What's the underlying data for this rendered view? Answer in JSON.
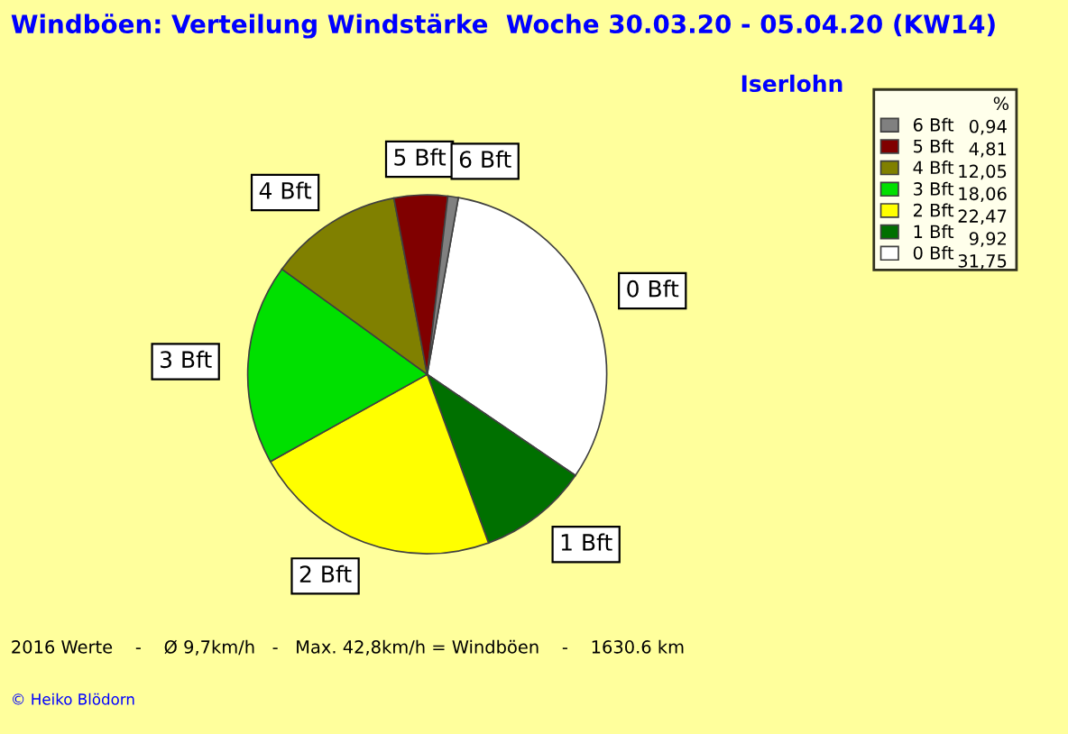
{
  "chart_data": {
    "type": "pie",
    "title": "Windböen: Verteilung Windstärke  Woche 30.03.20 - 05.04.20 (KW14)",
    "subtitle": "Iserlohn",
    "categories": [
      "0 Bft",
      "1 Bft",
      "2 Bft",
      "3 Bft",
      "4 Bft",
      "5 Bft",
      "6 Bft"
    ],
    "values": [
      31.75,
      9.92,
      22.47,
      18.06,
      12.05,
      4.81,
      0.94
    ],
    "value_labels": [
      "31,75",
      "9,92",
      "22,47",
      "18,06",
      "12,05",
      "4,81",
      "0,94"
    ],
    "colors": [
      "#ffffff",
      "#007000",
      "#ffff00",
      "#00e000",
      "#808000",
      "#800000",
      "#808080"
    ],
    "legend": "right",
    "legend_title": "%",
    "annotations": [
      "2016 Werte    -    Ø 9,7km/h   -   Max. 42,8km/h = Windböen    -    1630.6 km",
      "© Heiko Blödorn"
    ]
  }
}
